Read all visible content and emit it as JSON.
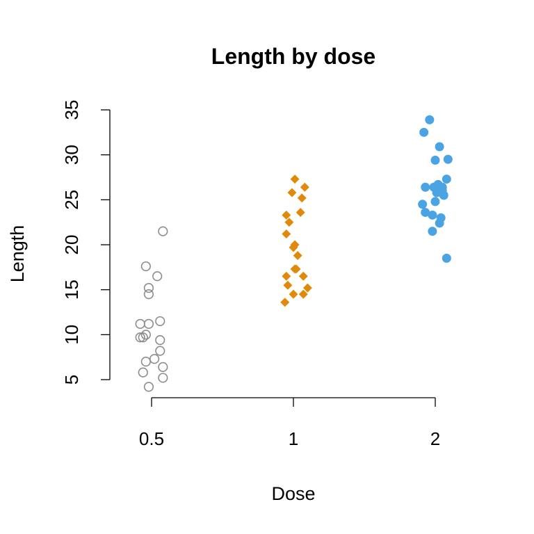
{
  "chart_data": {
    "type": "scatter",
    "title": "Length by dose",
    "xlabel": "Dose",
    "ylabel": "Length",
    "categories": [
      "0.5",
      "1",
      "2"
    ],
    "ylim": [
      5,
      35
    ],
    "yticks": [
      5,
      10,
      15,
      20,
      25,
      30,
      35
    ],
    "grid": false,
    "series": [
      {
        "category": "0.5",
        "marker": "open-circle",
        "color": "#8c8c8c",
        "points": [
          {
            "x": 0.54,
            "y": 21.5
          },
          {
            "x": 0.48,
            "y": 17.6
          },
          {
            "x": 0.52,
            "y": 16.5
          },
          {
            "x": 0.49,
            "y": 15.2
          },
          {
            "x": 0.49,
            "y": 14.5
          },
          {
            "x": 0.53,
            "y": 11.5
          },
          {
            "x": 0.49,
            "y": 11.2
          },
          {
            "x": 0.46,
            "y": 11.2
          },
          {
            "x": 0.48,
            "y": 10.0
          },
          {
            "x": 0.47,
            "y": 9.7
          },
          {
            "x": 0.46,
            "y": 9.7
          },
          {
            "x": 0.53,
            "y": 9.4
          },
          {
            "x": 0.53,
            "y": 8.2
          },
          {
            "x": 0.51,
            "y": 7.3
          },
          {
            "x": 0.48,
            "y": 7.0
          },
          {
            "x": 0.54,
            "y": 6.4
          },
          {
            "x": 0.47,
            "y": 5.8
          },
          {
            "x": 0.54,
            "y": 5.2
          },
          {
            "x": 0.49,
            "y": 4.2
          }
        ]
      },
      {
        "category": "1",
        "marker": "filled-diamond",
        "color": "#e08a0b",
        "points": [
          {
            "x": 1.01,
            "y": 27.3
          },
          {
            "x": 1.08,
            "y": 26.4
          },
          {
            "x": 0.99,
            "y": 25.8
          },
          {
            "x": 1.06,
            "y": 25.2
          },
          {
            "x": 1.05,
            "y": 23.6
          },
          {
            "x": 0.95,
            "y": 23.3
          },
          {
            "x": 0.97,
            "y": 22.5
          },
          {
            "x": 0.95,
            "y": 21.2
          },
          {
            "x": 1.01,
            "y": 20.0
          },
          {
            "x": 1.0,
            "y": 19.7
          },
          {
            "x": 1.03,
            "y": 18.8
          },
          {
            "x": 1.01,
            "y": 17.3
          },
          {
            "x": 1.02,
            "y": 17.3
          },
          {
            "x": 0.95,
            "y": 16.5
          },
          {
            "x": 1.07,
            "y": 16.5
          },
          {
            "x": 0.96,
            "y": 15.5
          },
          {
            "x": 1.1,
            "y": 15.2
          },
          {
            "x": 1.0,
            "y": 14.5
          },
          {
            "x": 1.07,
            "y": 14.5
          },
          {
            "x": 0.94,
            "y": 13.6
          }
        ]
      },
      {
        "category": "2",
        "marker": "filled-circle",
        "color": "#4aa3e3",
        "points": [
          {
            "x": 1.96,
            "y": 33.9
          },
          {
            "x": 1.92,
            "y": 32.5
          },
          {
            "x": 2.03,
            "y": 30.9
          },
          {
            "x": 2.09,
            "y": 29.5
          },
          {
            "x": 2.0,
            "y": 29.4
          },
          {
            "x": 2.08,
            "y": 27.3
          },
          {
            "x": 2.02,
            "y": 26.7
          },
          {
            "x": 2.05,
            "y": 26.4
          },
          {
            "x": 1.93,
            "y": 26.4
          },
          {
            "x": 1.99,
            "y": 26.4
          },
          {
            "x": 2.05,
            "y": 26.0
          },
          {
            "x": 2.01,
            "y": 25.8
          },
          {
            "x": 2.06,
            "y": 25.5
          },
          {
            "x": 2.0,
            "y": 24.8
          },
          {
            "x": 1.91,
            "y": 24.5
          },
          {
            "x": 1.93,
            "y": 23.6
          },
          {
            "x": 1.98,
            "y": 23.3
          },
          {
            "x": 2.04,
            "y": 23.0
          },
          {
            "x": 2.03,
            "y": 22.4
          },
          {
            "x": 1.98,
            "y": 21.5
          },
          {
            "x": 2.08,
            "y": 18.5
          }
        ]
      }
    ]
  }
}
